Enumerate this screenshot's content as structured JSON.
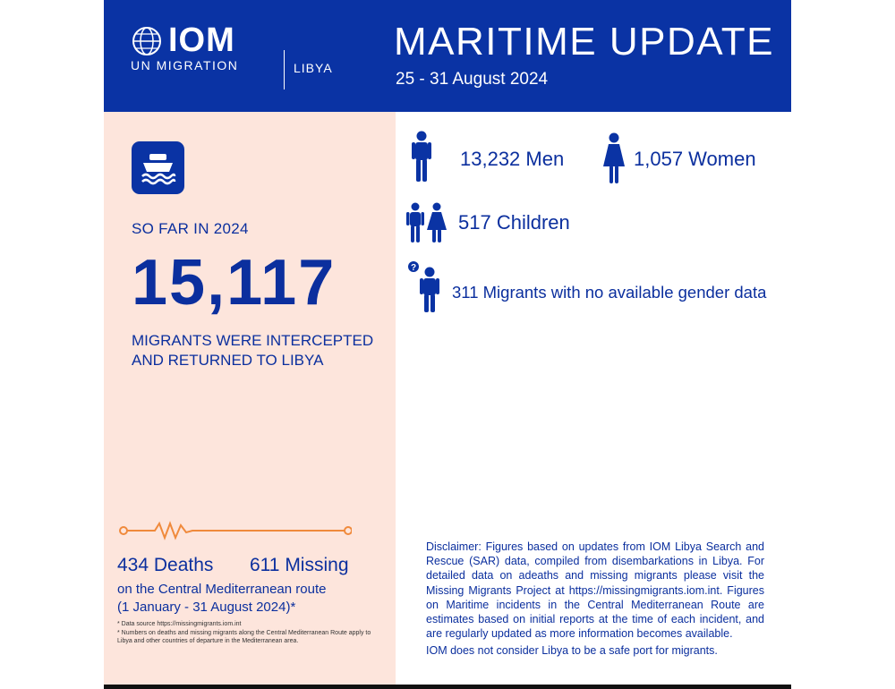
{
  "header": {
    "org_name": "IOM",
    "org_subtitle": "UN MIGRATION",
    "country": "LIBYA",
    "title": "MARITIME UPDATE",
    "dates": "25 - 31 August 2024"
  },
  "summary": {
    "so_far_label": "SO FAR IN 2024",
    "total": "15,117",
    "description": "MIGRANTS WERE INTERCEPTED AND RETURNED TO LIBYA"
  },
  "breakdown": {
    "men": "13,232 Men",
    "women": "1,057 Women",
    "children": "517 Children",
    "unknown": "311 Migrants with no available gender data"
  },
  "casualties": {
    "deaths": "434 Deaths",
    "missing": "611 Missing",
    "route": "on the Central Mediterranean route",
    "period": "(1 January - 31 August 2024)*",
    "footnote_1": "*   Data source https://missingmigrants.iom.int",
    "footnote_2": "*   Numbers on deaths and missing migrants along the Central Mediterranean Route apply to Libya and other countries of departure in the Mediterranean area."
  },
  "disclaimer": {
    "text": "Disclaimer: Figures based on updates from IOM Libya Search and Rescue (SAR) data, compiled from disembarkations in Libya. For detailed data on adeaths and missing migrants please visit the Missing Migrants Project at https://missingmigrants.iom.int. Figures on Maritime incidents in the Central Mediterranean Route are estimates based on initial reports at the time of each incident, and are regularly updated as more information becomes available.",
    "safe_port": "IOM does not consider Libya to be a safe port for migrants."
  },
  "colors": {
    "brand_blue": "#0a33a4",
    "panel_peach": "#fde5dc",
    "pulse_orange": "#f08a3c"
  },
  "icons": {
    "logo": "iom-globe-icon",
    "boat": "boat-icon",
    "man": "man-icon",
    "woman": "woman-icon",
    "children": "children-icon",
    "unknown": "unknown-gender-icon",
    "pulse": "heartbeat-line-icon"
  }
}
